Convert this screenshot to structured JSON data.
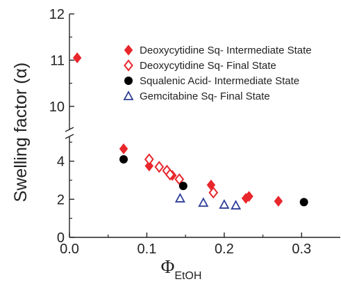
{
  "chart_data": {
    "type": "scatter",
    "title": "",
    "ylabel_text": "Swelling factor (",
    "ylabel_symbol": "α",
    "ylabel_close": ")",
    "xlabel_symbol": "Φ",
    "xlabel_subscript": "EtOH",
    "xlim": [
      0.0,
      0.35
    ],
    "ylim_lower": [
      0,
      5.3
    ],
    "ylim_upper": [
      9.5,
      12
    ],
    "axis_break": true,
    "x_ticks": [
      "0.0",
      "0.1",
      "0.2",
      "0.3"
    ],
    "y_ticks_lower": [
      "0",
      "2",
      "4"
    ],
    "y_ticks_upper": [
      "10",
      "11",
      "12"
    ],
    "legend_position": "top-right",
    "series": [
      {
        "name": "Deoxycytidine Sq- Intermediate State",
        "marker": "diamond-filled",
        "color": "#e8262b",
        "x": [
          0.01,
          0.07,
          0.103,
          0.133,
          0.183,
          0.228,
          0.232,
          0.27
        ],
        "y": [
          11.05,
          4.65,
          3.75,
          3.25,
          2.75,
          2.05,
          2.15,
          1.9
        ]
      },
      {
        "name": "Deoxycytidine Sq- Final State",
        "marker": "diamond-open",
        "color": "#e8262b",
        "x": [
          0.103,
          0.116,
          0.126,
          0.13,
          0.142,
          0.186
        ],
        "y": [
          4.1,
          3.7,
          3.5,
          3.3,
          3.05,
          2.35
        ]
      },
      {
        "name": "Squalenic Acid- Intermediate State",
        "marker": "circle-filled",
        "color": "#000000",
        "x": [
          0.07,
          0.147,
          0.303
        ],
        "y": [
          4.1,
          2.7,
          1.85
        ]
      },
      {
        "name": "Gemcitabine Sq- Final State",
        "marker": "triangle-open",
        "color": "#2e3f99",
        "x": [
          0.143,
          0.173,
          0.2,
          0.215
        ],
        "y": [
          2.05,
          1.82,
          1.72,
          1.68
        ]
      }
    ]
  }
}
